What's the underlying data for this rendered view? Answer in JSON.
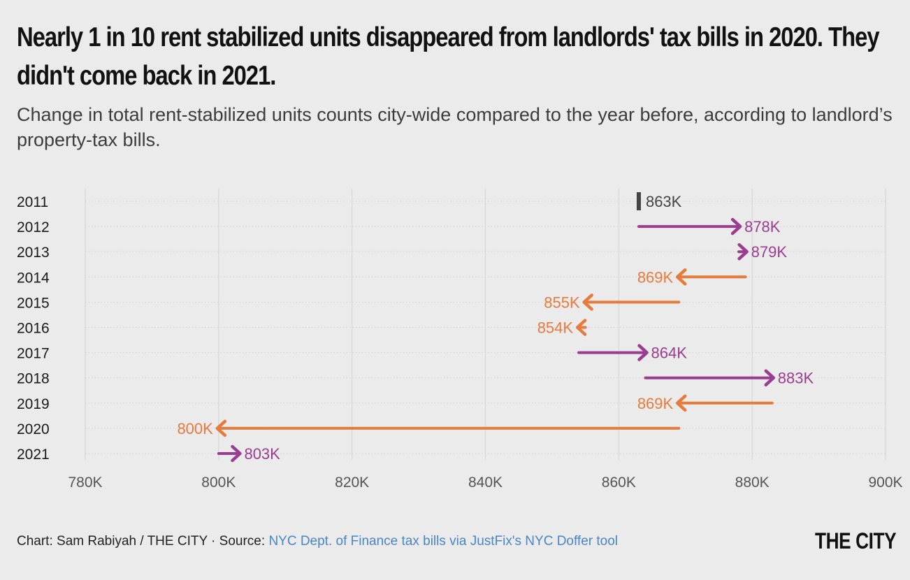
{
  "header": {
    "title": "Nearly 1 in 10 rent stabilized units disappeared from landlords' tax bills in 2020. They didn't come back in 2021.",
    "subtitle": "Change in total rent-stabilized units counts city-wide compared to the year before, according to landlord’s property-tax bills."
  },
  "colors": {
    "increase": "#9b3d8f",
    "decrease": "#e57b3c",
    "baseline": "#444444",
    "gridline": "#d6d6d6",
    "rowline": "#cfcfcf",
    "axis_text": "#555555",
    "year_text": "#1a1a1a"
  },
  "chart_data": {
    "type": "arrow",
    "xlim": [
      780,
      900
    ],
    "x_unit": "K",
    "x_ticks": [
      "780K",
      "800K",
      "820K",
      "840K",
      "860K",
      "880K",
      "900K"
    ],
    "x_tick_values": [
      780,
      800,
      820,
      840,
      860,
      880,
      900
    ],
    "rows": [
      {
        "year": "2011",
        "from": 863,
        "to": 863,
        "label": "863K",
        "direction": "none"
      },
      {
        "year": "2012",
        "from": 863,
        "to": 878,
        "label": "878K",
        "direction": "up"
      },
      {
        "year": "2013",
        "from": 878,
        "to": 879,
        "label": "879K",
        "direction": "up"
      },
      {
        "year": "2014",
        "from": 879,
        "to": 869,
        "label": "869K",
        "direction": "down"
      },
      {
        "year": "2015",
        "from": 869,
        "to": 855,
        "label": "855K",
        "direction": "down"
      },
      {
        "year": "2016",
        "from": 855,
        "to": 854,
        "label": "854K",
        "direction": "down"
      },
      {
        "year": "2017",
        "from": 854,
        "to": 864,
        "label": "864K",
        "direction": "up"
      },
      {
        "year": "2018",
        "from": 864,
        "to": 883,
        "label": "883K",
        "direction": "up"
      },
      {
        "year": "2019",
        "from": 883,
        "to": 869,
        "label": "869K",
        "direction": "down"
      },
      {
        "year": "2020",
        "from": 869,
        "to": 800,
        "label": "800K",
        "direction": "down"
      },
      {
        "year": "2021",
        "from": 800,
        "to": 803,
        "label": "803K",
        "direction": "up"
      }
    ]
  },
  "footer": {
    "credit": "Chart: Sam Rabiyah / THE CITY · Source: ",
    "source_link": "NYC Dept. of Finance tax bills via JustFix's NYC Doffer tool",
    "logo": "THE CITY"
  }
}
